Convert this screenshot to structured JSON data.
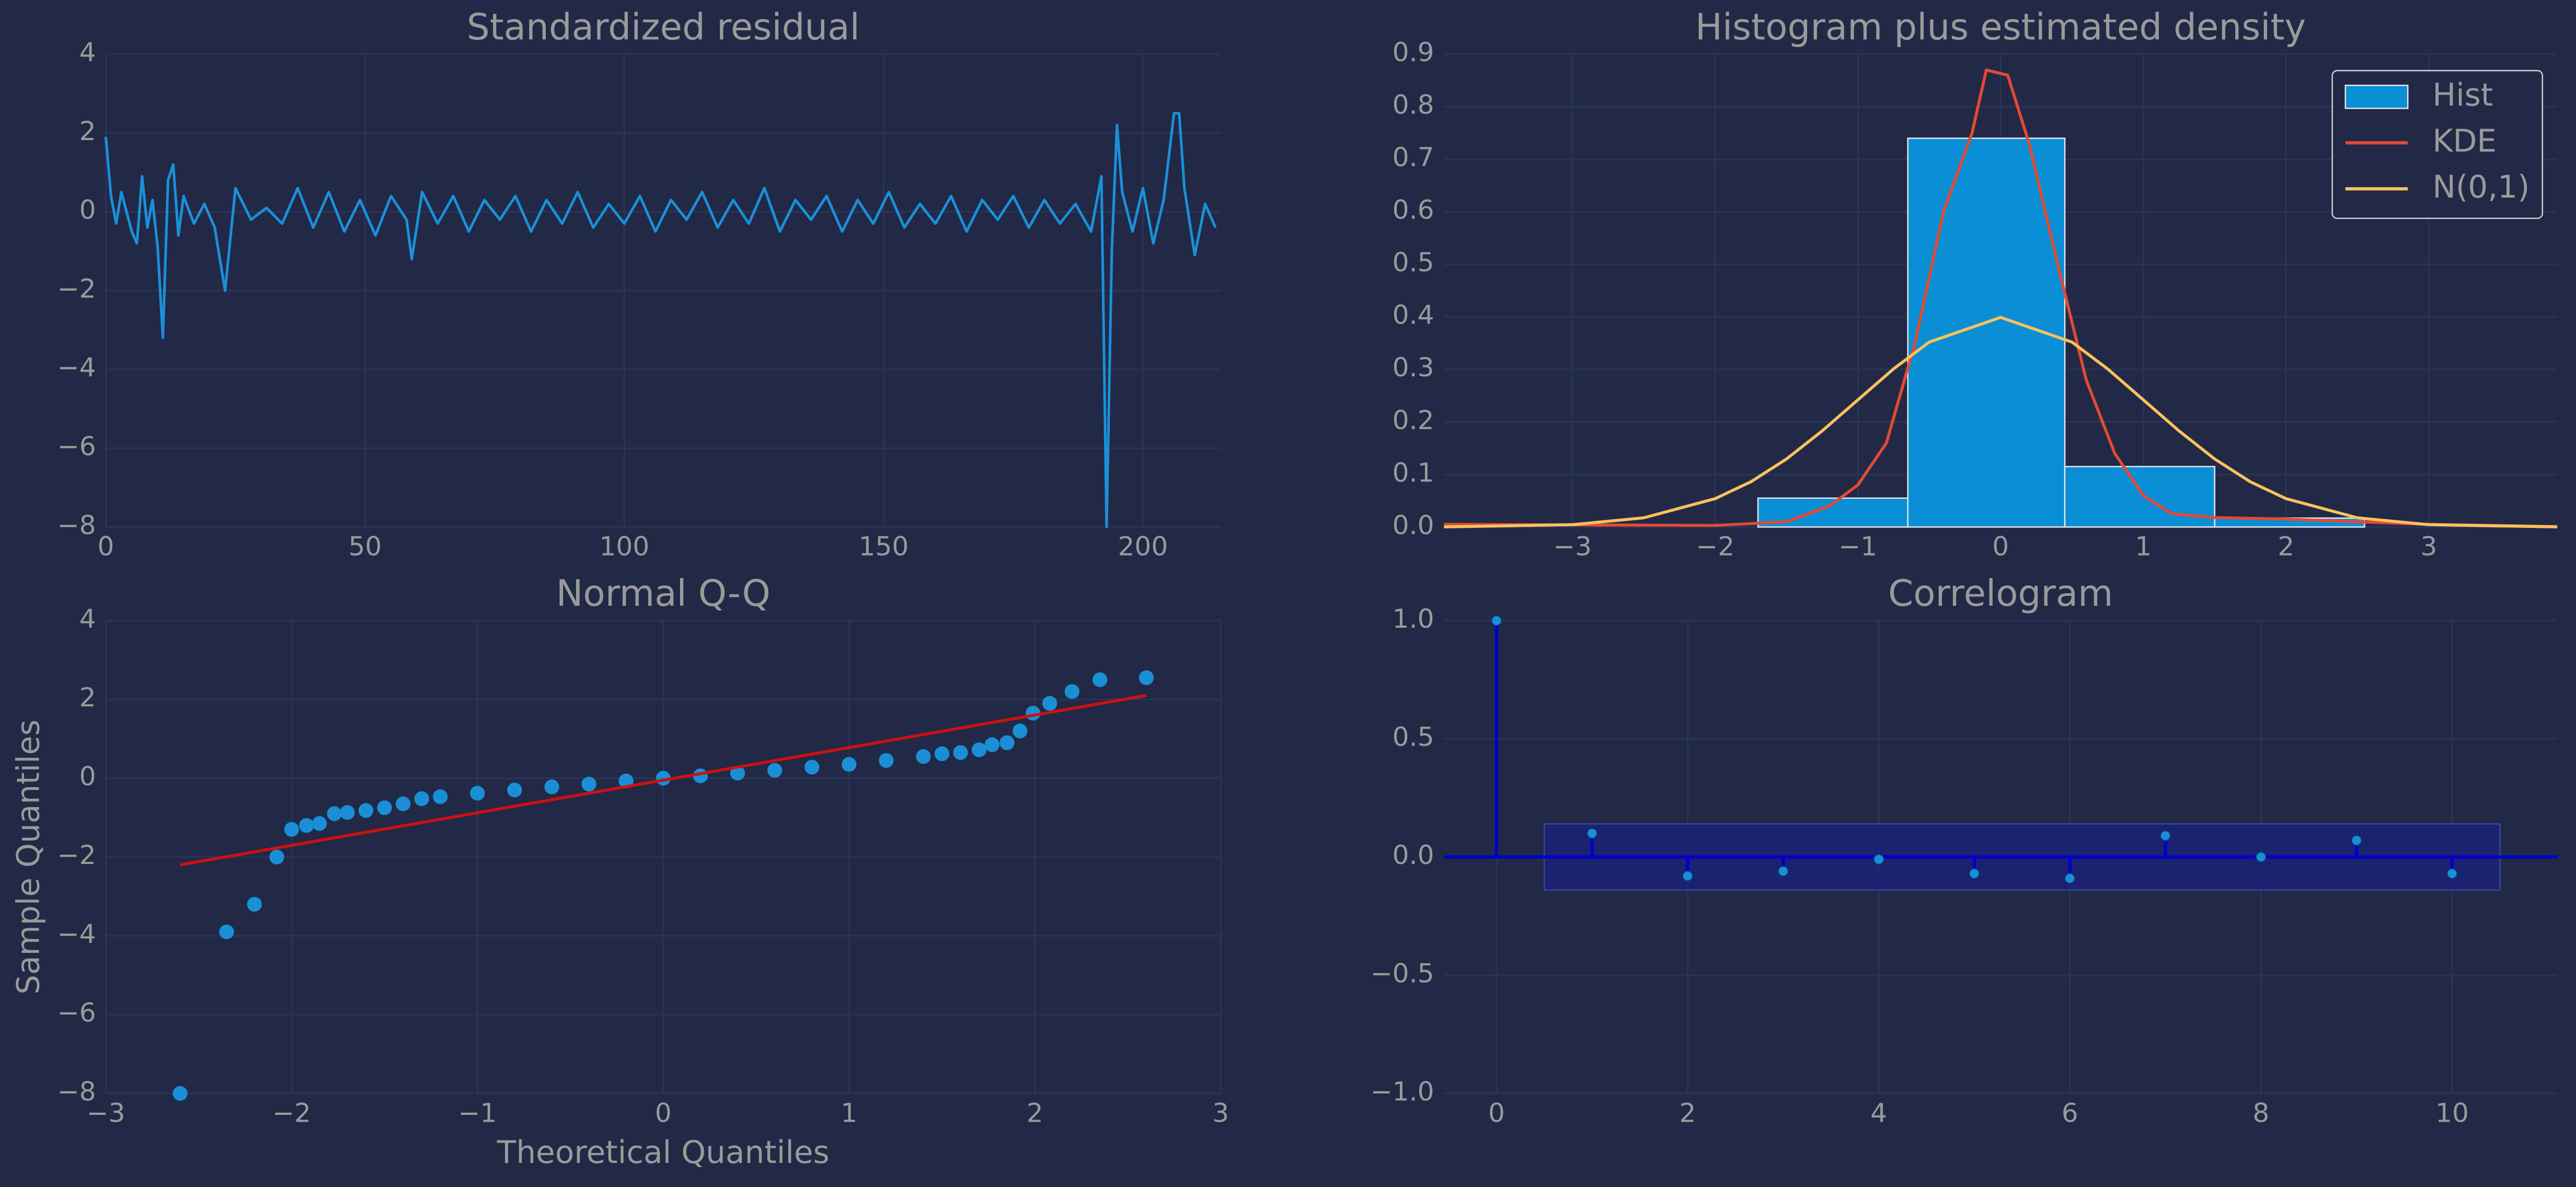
{
  "chart_data": [
    {
      "type": "line",
      "title": "Standardized residual",
      "color": "#1a90d9",
      "grid": true,
      "xlim": [
        0,
        215
      ],
      "ylim": [
        -8,
        4
      ],
      "xticks": [
        0,
        50,
        100,
        150,
        200
      ],
      "yticks": [
        {
          "value": -8,
          "label": "−8"
        },
        {
          "value": -6,
          "label": "−6"
        },
        {
          "value": -4,
          "label": "−4"
        },
        {
          "value": -2,
          "label": "−2"
        },
        0,
        2,
        4
      ],
      "x": [
        0,
        1,
        2,
        3,
        4,
        5,
        6,
        7,
        8,
        9,
        10,
        11,
        12,
        13,
        14,
        15,
        17,
        19,
        21,
        23,
        25,
        28,
        31,
        34,
        37,
        40,
        43,
        46,
        49,
        52,
        55,
        58,
        59,
        61,
        64,
        67,
        70,
        73,
        76,
        79,
        82,
        85,
        88,
        91,
        94,
        97,
        100,
        103,
        106,
        109,
        112,
        115,
        118,
        121,
        124,
        127,
        130,
        133,
        136,
        139,
        142,
        145,
        148,
        151,
        154,
        157,
        160,
        163,
        166,
        169,
        172,
        175,
        178,
        181,
        184,
        187,
        190,
        192,
        193,
        194,
        195,
        196,
        198,
        200,
        202,
        204,
        206,
        207,
        208,
        210,
        212,
        214
      ],
      "values": [
        1.9,
        0.4,
        -0.3,
        0.5,
        0,
        -0.5,
        -0.8,
        0.9,
        -0.4,
        0.3,
        -0.9,
        -3.2,
        0.8,
        1.2,
        -0.6,
        0.4,
        -0.3,
        0.2,
        -0.4,
        -2.0,
        0.6,
        -0.2,
        0.1,
        -0.3,
        0.6,
        -0.4,
        0.5,
        -0.5,
        0.3,
        -0.6,
        0.4,
        -0.2,
        -1.2,
        0.5,
        -0.3,
        0.4,
        -0.5,
        0.3,
        -0.2,
        0.4,
        -0.5,
        0.3,
        -0.3,
        0.5,
        -0.4,
        0.2,
        -0.3,
        0.4,
        -0.5,
        0.3,
        -0.2,
        0.5,
        -0.4,
        0.3,
        -0.3,
        0.6,
        -0.5,
        0.3,
        -0.2,
        0.4,
        -0.5,
        0.3,
        -0.3,
        0.5,
        -0.4,
        0.2,
        -0.3,
        0.4,
        -0.5,
        0.3,
        -0.2,
        0.4,
        -0.4,
        0.3,
        -0.3,
        0.2,
        -0.5,
        0.9,
        -8.0,
        -1.0,
        2.2,
        0.5,
        -0.5,
        0.6,
        -0.8,
        0.3,
        2.5,
        2.5,
        0.6,
        -1.1,
        0.2,
        -0.4
      ]
    },
    {
      "type": "histogram",
      "title": "Histogram plus estimated density",
      "grid": true,
      "legend": "upper right",
      "xlim": [
        -3.9,
        3.9
      ],
      "ylim": [
        0,
        0.9
      ],
      "xticks": [
        {
          "value": -3,
          "label": "−3"
        },
        {
          "value": -2,
          "label": "−2"
        },
        {
          "value": -1,
          "label": "−1"
        },
        0,
        1,
        2,
        3
      ],
      "yticks": [
        {
          "value": 0,
          "label": "0.0"
        },
        0.1,
        0.2,
        0.3,
        0.4,
        0.5,
        0.6,
        0.7,
        0.8,
        0.9
      ],
      "name": "Hist",
      "color": "#0a8fd6",
      "bins": [
        -1.7,
        -0.65,
        0.45,
        1.5,
        2.55
      ],
      "values": [
        0.055,
        0.74,
        0.115,
        0.017
      ],
      "lines": [
        {
          "name": "KDE",
          "color": "#e24a33",
          "x": [
            -3.9,
            -2,
            -1.5,
            -1.2,
            -1,
            -0.8,
            -0.6,
            -0.4,
            -0.2,
            -0.1,
            0.05,
            0.2,
            0.4,
            0.6,
            0.8,
            1.0,
            1.2,
            1.5,
            2.0,
            2.5,
            3,
            3.9
          ],
          "values": [
            0.005,
            0.003,
            0.01,
            0.04,
            0.08,
            0.16,
            0.35,
            0.6,
            0.75,
            0.87,
            0.86,
            0.73,
            0.5,
            0.28,
            0.14,
            0.06,
            0.025,
            0.018,
            0.015,
            0.01,
            0.005,
            0.001
          ]
        },
        {
          "name": "N(0,1)",
          "color": "#fbc15e",
          "x": [
            -3.9,
            -3,
            -2.5,
            -2,
            -1.75,
            -1.5,
            -1.25,
            -1,
            -0.75,
            -0.5,
            0,
            0.5,
            0.75,
            1,
            1.25,
            1.5,
            1.75,
            2,
            2.5,
            3,
            3.9
          ],
          "values": [
            0.0002,
            0.0044,
            0.0175,
            0.054,
            0.086,
            0.1295,
            0.183,
            0.242,
            0.301,
            0.352,
            0.399,
            0.352,
            0.301,
            0.242,
            0.183,
            0.1295,
            0.086,
            0.054,
            0.0175,
            0.0044,
            0.0002
          ]
        }
      ]
    },
    {
      "type": "scatter",
      "title": "Normal Q-Q",
      "xlabel": "Theoretical Quantiles",
      "ylabel": "Sample Quantiles",
      "grid": true,
      "color": "#1a8fd6",
      "xlim": [
        -3,
        3
      ],
      "ylim": [
        -8,
        4
      ],
      "xticks": [
        {
          "value": -3,
          "label": "−3"
        },
        {
          "value": -2,
          "label": "−2"
        },
        {
          "value": -1,
          "label": "−1"
        },
        0,
        1,
        2,
        3
      ],
      "yticks": [
        {
          "value": -8,
          "label": "−8"
        },
        {
          "value": -6,
          "label": "−6"
        },
        {
          "value": -4,
          "label": "−4"
        },
        {
          "value": -2,
          "label": "−2"
        },
        0,
        2,
        4
      ],
      "x": [
        -2.6,
        -2.35,
        -2.2,
        -2.08,
        -2.0,
        -1.92,
        -1.85,
        -1.77,
        -1.7,
        -1.6,
        -1.5,
        -1.4,
        -1.3,
        -1.2,
        -1.0,
        -0.8,
        -0.6,
        -0.4,
        -0.2,
        0,
        0.2,
        0.4,
        0.6,
        0.8,
        1.0,
        1.2,
        1.4,
        1.5,
        1.6,
        1.7,
        1.77,
        1.85,
        1.92,
        1.99,
        2.08,
        2.2,
        2.35,
        2.6
      ],
      "values": [
        -8,
        -3.9,
        -3.2,
        -2.0,
        -1.3,
        -1.2,
        -1.15,
        -0.9,
        -0.87,
        -0.82,
        -0.75,
        -0.65,
        -0.52,
        -0.47,
        -0.38,
        -0.3,
        -0.22,
        -0.15,
        -0.07,
        0,
        0.06,
        0.13,
        0.2,
        0.28,
        0.35,
        0.45,
        0.55,
        0.62,
        0.65,
        0.72,
        0.85,
        0.9,
        1.2,
        1.65,
        1.9,
        2.2,
        2.5,
        2.55
      ],
      "fit_line": {
        "color": "#cc1111",
        "x": [
          -2.6,
          2.6
        ],
        "values": [
          -2.2,
          2.1
        ]
      }
    },
    {
      "type": "stem",
      "title": "Correlogram",
      "grid": true,
      "color": "#0000cc",
      "marker_color": "#1a8fd6",
      "band_color": "#1a1f80",
      "confidence": 0.14,
      "xlim": [
        -0.55,
        11.1
      ],
      "ylim": [
        -1,
        1
      ],
      "xticks": [
        0,
        2,
        4,
        6,
        8,
        10
      ],
      "yticks": [
        {
          "value": -1,
          "label": "−1.0"
        },
        {
          "value": -0.5,
          "label": "−0.5"
        },
        {
          "value": 0,
          "label": "0.0"
        },
        0.5,
        {
          "value": 1,
          "label": "1.0"
        }
      ],
      "x": [
        0,
        1,
        2,
        3,
        4,
        5,
        6,
        7,
        8,
        9,
        10
      ],
      "values": [
        1.0,
        0.1,
        -0.08,
        -0.06,
        -0.01,
        -0.07,
        -0.09,
        0.09,
        0.0,
        0.07,
        -0.07
      ]
    }
  ]
}
